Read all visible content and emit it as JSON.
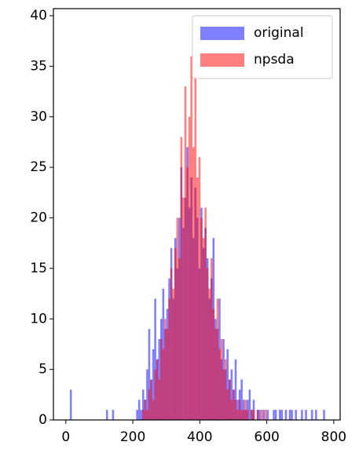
{
  "chart_data": {
    "type": "histogram",
    "series": [
      {
        "name": "original",
        "color": "#0000ff",
        "bins": [
          12,
          18,
          24,
          30,
          36,
          42,
          48,
          54,
          60,
          66,
          72,
          78,
          84,
          90,
          96,
          102,
          108,
          114,
          120,
          126,
          132,
          138,
          144,
          150,
          156,
          162,
          168,
          174,
          180,
          186,
          192,
          198,
          204,
          210,
          216,
          222,
          228,
          234,
          240,
          246,
          252,
          258,
          264,
          270,
          276,
          282,
          288,
          294,
          300,
          306,
          312,
          318,
          324,
          330,
          336,
          342,
          348,
          354,
          360,
          366,
          372,
          378,
          384,
          390,
          396,
          402,
          408,
          414,
          420,
          426,
          432,
          438,
          444,
          450,
          456,
          462,
          468,
          474,
          480,
          486,
          492,
          498,
          504,
          510,
          516,
          522,
          528,
          534,
          540,
          546,
          552,
          558,
          564,
          570,
          576,
          582,
          588,
          594,
          600,
          606,
          612,
          618,
          624,
          630,
          636,
          642,
          648,
          654,
          660,
          666,
          672,
          678,
          684,
          690,
          696,
          702,
          708,
          714,
          720,
          726,
          732,
          738,
          744,
          750,
          756,
          762,
          768,
          774
        ],
        "values": [
          3,
          0,
          0,
          0,
          0,
          0,
          0,
          0,
          0,
          0,
          0,
          0,
          0,
          0,
          0,
          0,
          0,
          0,
          1,
          0,
          0,
          1,
          0,
          0,
          0,
          0,
          0,
          0,
          0,
          0,
          0,
          0,
          0,
          1,
          2,
          1,
          3,
          2,
          5,
          9,
          4,
          7,
          12,
          6,
          8,
          10,
          13,
          9,
          11,
          14,
          17,
          12,
          18,
          15,
          20,
          25,
          19,
          22,
          27,
          21,
          24,
          18,
          23,
          20,
          15,
          21,
          17,
          19,
          16,
          12,
          14,
          18,
          10,
          9,
          12,
          6,
          8,
          5,
          7,
          4,
          5,
          3,
          6,
          2,
          3,
          4,
          2,
          1,
          2,
          3,
          1,
          2,
          0,
          1,
          1,
          0,
          1,
          0,
          1,
          0,
          0,
          1,
          1,
          0,
          1,
          1,
          0,
          1,
          0,
          1,
          1,
          0,
          1,
          0,
          0,
          1,
          0,
          1,
          0,
          0,
          1,
          0,
          1,
          0,
          0,
          0,
          1
        ]
      },
      {
        "name": "npsda",
        "color": "#ff0000",
        "bins": [
          228,
          234,
          240,
          246,
          252,
          258,
          264,
          270,
          276,
          282,
          288,
          294,
          300,
          306,
          312,
          318,
          324,
          330,
          336,
          342,
          348,
          354,
          360,
          366,
          372,
          378,
          384,
          390,
          396,
          402,
          408,
          414,
          420,
          426,
          432,
          438,
          444,
          450,
          456,
          462,
          468,
          474,
          480,
          486,
          492,
          498,
          504,
          510,
          516,
          522,
          528,
          534,
          540,
          546,
          552,
          558,
          564,
          570,
          576,
          582,
          588,
          594,
          600
        ],
        "values": [
          1,
          2,
          1,
          3,
          4,
          2,
          5,
          6,
          4,
          8,
          7,
          10,
          9,
          12,
          15,
          13,
          17,
          20,
          16,
          28,
          22,
          33,
          25,
          30,
          36,
          27,
          34,
          24,
          26,
          20,
          18,
          21,
          15,
          13,
          16,
          11,
          9,
          12,
          7,
          8,
          5,
          6,
          3,
          4,
          2,
          3,
          2,
          1,
          2,
          1,
          1,
          2,
          1,
          0,
          1,
          1,
          0,
          1,
          0,
          1,
          0,
          1
        ]
      }
    ],
    "alpha": 0.5,
    "xlim": [
      -37,
      819
    ],
    "xticks": [
      0,
      200,
      400,
      600,
      800
    ],
    "ylim": [
      0,
      40.7
    ],
    "yticks": [
      0,
      5,
      10,
      15,
      20,
      25,
      30,
      35,
      40
    ],
    "legend": "upper right"
  }
}
